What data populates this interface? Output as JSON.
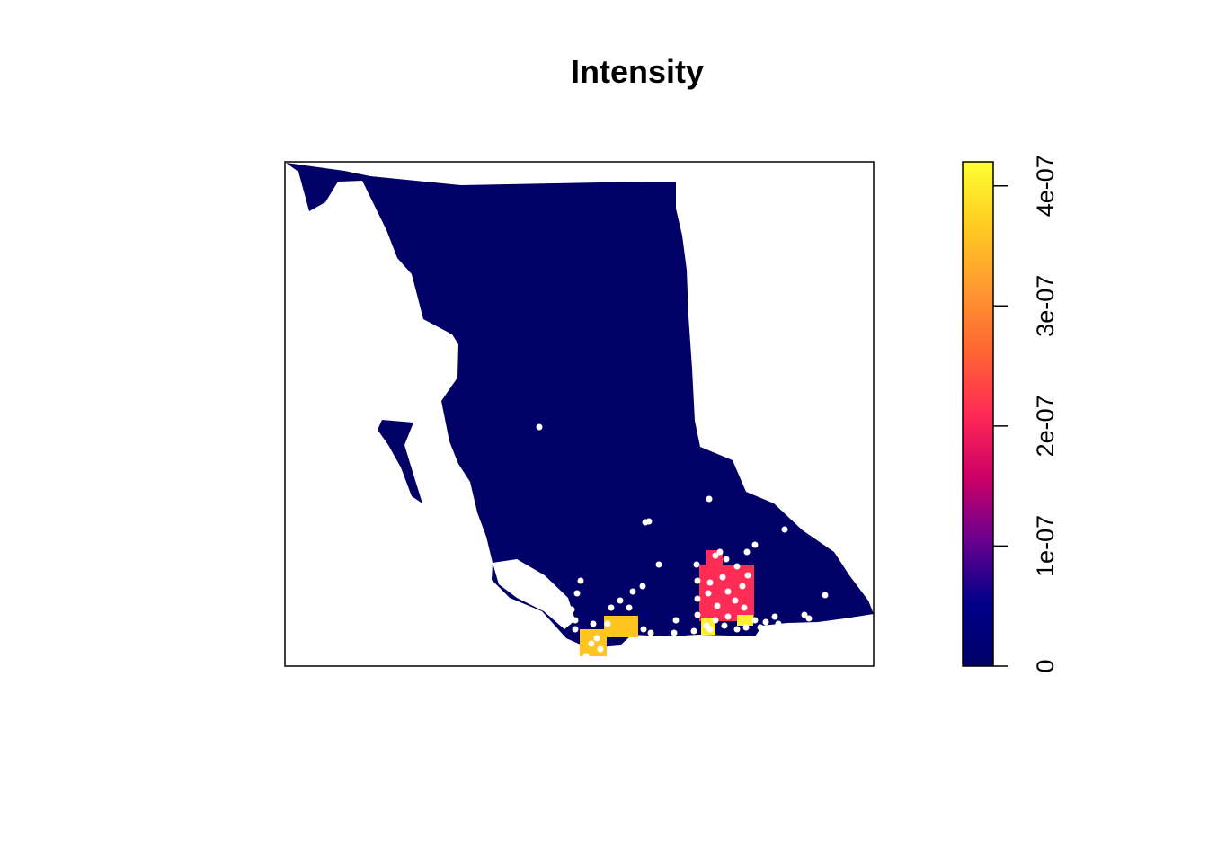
{
  "chart_data": {
    "type": "heatmap",
    "title": "Intensity",
    "xlabel": "",
    "ylabel": "",
    "map_region": "British Columbia",
    "axes": "none",
    "value_range": [
      0,
      4.2e-07
    ],
    "colorbar": {
      "ticks": [
        {
          "value": 0,
          "label": "0"
        },
        {
          "value": 1e-07,
          "label": "1e-07"
        },
        {
          "value": 2e-07,
          "label": "2e-07"
        },
        {
          "value": 3e-07,
          "label": "3e-07"
        },
        {
          "value": 4e-07,
          "label": "4e-07"
        }
      ],
      "colors": [
        "#000066",
        "#00008b",
        "#6a008f",
        "#cc0066",
        "#ff2a55",
        "#ff6633",
        "#ff9930",
        "#ffcc22",
        "#ffff33"
      ],
      "placement": "right"
    },
    "cells": [
      {
        "label": "base",
        "value": 0.0,
        "color": "#000066"
      },
      {
        "label": "kootenay-rectangle",
        "value": 2.7e-07,
        "color": "#ff2d55"
      },
      {
        "label": "lower-mainland",
        "value": 3.9e-07,
        "color": "#ffc41f"
      },
      {
        "label": "south-okanagan",
        "value": 4.1e-07,
        "color": "#ffee33"
      }
    ],
    "points_color": "#ffffff"
  }
}
